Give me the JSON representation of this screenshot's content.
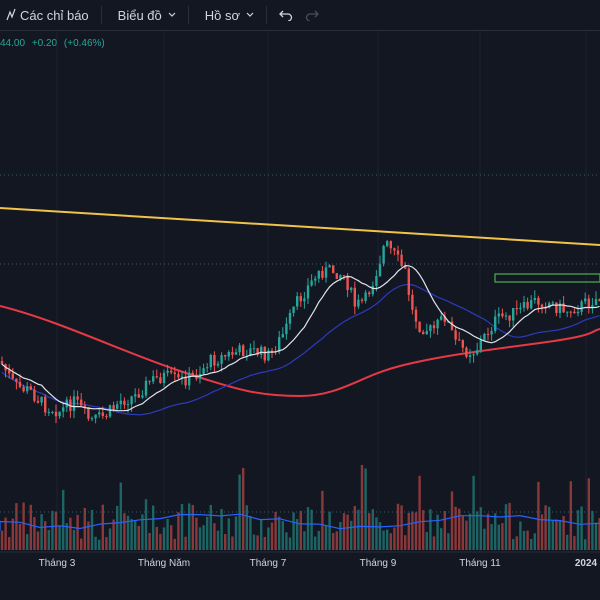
{
  "toolbar": {
    "indicators_label": "Các chỉ báo",
    "chart_type_label": "Biểu đồ",
    "profile_label": "Hồ sơ"
  },
  "legend": {
    "close_value": "44.00",
    "change_abs": "+0.20",
    "change_pct": "(+0.46%)"
  },
  "colors": {
    "background": "#131722",
    "up": "#26a69a",
    "down": "#ef5350",
    "ma_fast": "#e0e3eb",
    "ma_mid": "#2c3bbd",
    "ma_slow": "#e53945",
    "trendline": "#f0c34b",
    "zone": "#4caf50"
  },
  "time_axis": {
    "labels": [
      "Tháng 3",
      "Tháng Năm",
      "Tháng 7",
      "Tháng 9",
      "Tháng 11",
      "2024"
    ]
  }
}
